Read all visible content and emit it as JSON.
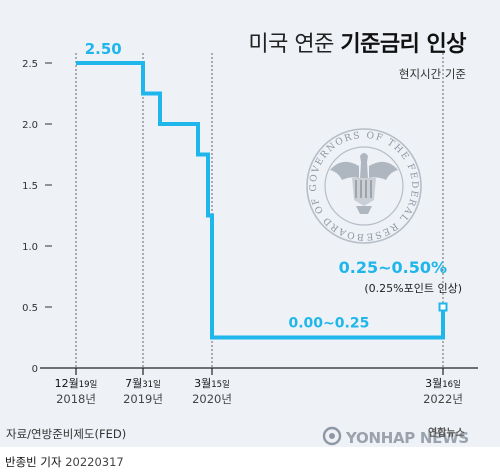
{
  "header": {
    "title_light": "미국 연준",
    "title_bold": "기준금리 인상",
    "subtitle": "현지시간 기준"
  },
  "footer": {
    "source": "자료/연방준비제도(FED)",
    "byline_name": "반종빈 기자",
    "byline_date": "20220317",
    "logo_en": "YONHAP NEWS",
    "logo_ko": "연합뉴스"
  },
  "seal": {
    "text": "BOARD OF GOVERNORS OF THE FEDERAL RESERVE SYSTEM"
  },
  "chart_data": {
    "type": "line",
    "subtype": "step",
    "yticks": [
      0,
      0.5,
      1.0,
      1.5,
      2.0,
      2.5
    ],
    "ytick_labels": [
      "0",
      "0.5",
      "1.0",
      "1.5",
      "2.0",
      "2.5"
    ],
    "ylim": [
      0,
      2.6
    ],
    "grid": "dashed vertical lines at key dates",
    "series": [
      {
        "color": "#1fb6ec",
        "points": [
          {
            "x": "2018-12-19",
            "y": 2.5
          },
          {
            "x": "2019-07-31",
            "y": 2.5
          },
          {
            "x": "2019-07-31",
            "y": 2.25
          },
          {
            "x": "2019-09-18",
            "y": 2.25
          },
          {
            "x": "2019-09-18",
            "y": 2.0
          },
          {
            "x": "2019-10-30",
            "y": 2.0
          },
          {
            "x": "2019-10-30",
            "y": 1.75
          },
          {
            "x": "2020-03-03",
            "y": 1.75
          },
          {
            "x": "2020-03-03",
            "y": 1.25
          },
          {
            "x": "2020-03-15",
            "y": 1.25
          },
          {
            "x": "2020-03-15",
            "y": 0.25
          },
          {
            "x": "2022-03-16",
            "y": 0.25
          },
          {
            "x": "2022-03-16",
            "y": 0.5
          }
        ]
      }
    ],
    "key_dates": [
      {
        "date": "2018-12-19",
        "month_day_main": "12월",
        "month_day_small": "19일",
        "year": "2018년"
      },
      {
        "date": "2019-07-31",
        "month_day_main": "7월",
        "month_day_small": "31일",
        "year": "2019년"
      },
      {
        "date": "2020-03-15",
        "month_day_main": "3월",
        "month_day_small": "15일",
        "year": "2020년"
      },
      {
        "date": "2022-03-16",
        "month_day_main": "3월",
        "month_day_small": "16일",
        "year": "2022년"
      }
    ],
    "annotations": [
      {
        "id": "start",
        "text": "2.50",
        "date": "2019-03-20",
        "y": 2.5
      },
      {
        "id": "zero",
        "text": "0.00~0.25",
        "date": "2021-03-20",
        "y": 0.25
      },
      {
        "id": "now",
        "text": "0.25~0.50%",
        "date": "2022-03-16",
        "y": 0.5
      },
      {
        "id": "now-sub",
        "text": "(0.25%포인트 인상)",
        "date": "2022-03-16",
        "y": 0.5
      }
    ]
  }
}
